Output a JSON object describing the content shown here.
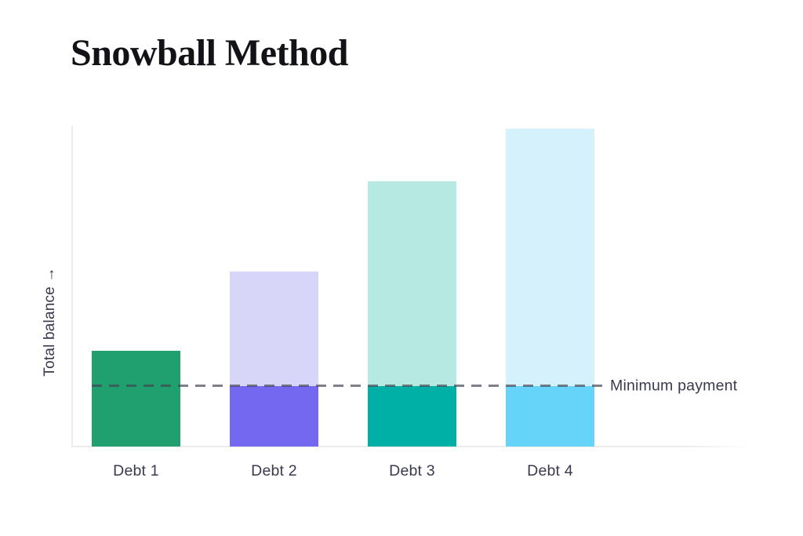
{
  "page": {
    "background_color": "#ffffff"
  },
  "chart_data": {
    "type": "bar",
    "title": "Snowball Method",
    "xlabel": "",
    "ylabel": "Total balance",
    "ylabel_display": "Total balance →",
    "categories": [
      "Debt 1",
      "Debt 2",
      "Debt 3",
      "Debt 4"
    ],
    "values": [
      30,
      55,
      83.5,
      100
    ],
    "ylim": [
      0,
      100
    ],
    "grid": false,
    "legend": "none",
    "annotation_line": {
      "label": "Minimum payment",
      "value": 19,
      "style": "dashed",
      "color": "#424252"
    },
    "bars": [
      {
        "label": "Debt 1",
        "value": 30,
        "color_below_line": "#21A06F",
        "color_above_line": "#21A06F"
      },
      {
        "label": "Debt 2",
        "value": 55,
        "color_below_line": "#7568F0",
        "color_above_line": "#D8D6F8"
      },
      {
        "label": "Debt 3",
        "value": 83.5,
        "color_below_line": "#00AFA6",
        "color_above_line": "#B6E9E1"
      },
      {
        "label": "Debt 4",
        "value": 100,
        "color_below_line": "#66D4F8",
        "color_above_line": "#D4F1FC"
      }
    ],
    "colors": {
      "title_text": "#131317",
      "label_text": "#3A3A4E",
      "axis_line": "#ECECEC",
      "dashed_line": "#424252"
    }
  }
}
